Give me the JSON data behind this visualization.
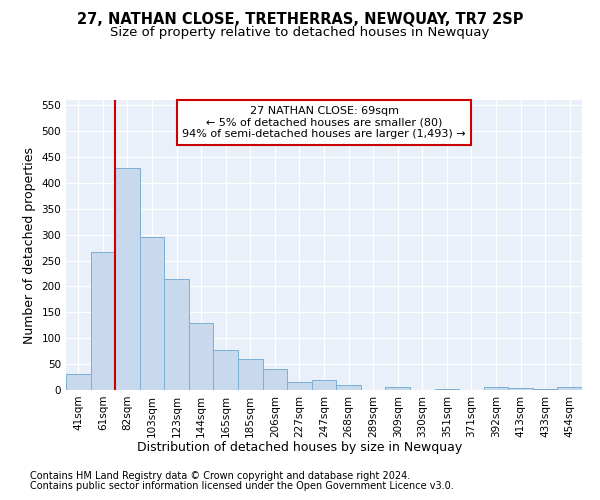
{
  "title": "27, NATHAN CLOSE, TRETHERRAS, NEWQUAY, TR7 2SP",
  "subtitle": "Size of property relative to detached houses in Newquay",
  "xlabel": "Distribution of detached houses by size in Newquay",
  "ylabel": "Number of detached properties",
  "bar_labels": [
    "41sqm",
    "61sqm",
    "82sqm",
    "103sqm",
    "123sqm",
    "144sqm",
    "165sqm",
    "185sqm",
    "206sqm",
    "227sqm",
    "247sqm",
    "268sqm",
    "289sqm",
    "309sqm",
    "330sqm",
    "351sqm",
    "371sqm",
    "392sqm",
    "413sqm",
    "433sqm",
    "454sqm"
  ],
  "bar_values": [
    30,
    267,
    428,
    295,
    215,
    130,
    78,
    60,
    40,
    15,
    20,
    10,
    0,
    5,
    0,
    2,
    0,
    5,
    3,
    2,
    5
  ],
  "bar_color": "#c8d9ee",
  "bar_edgecolor": "#7aafd4",
  "background_color": "#eaf0f9",
  "grid_color": "#d0dcea",
  "vline_x_idx": 1.5,
  "vline_color": "#cc0000",
  "annotation_text": "27 NATHAN CLOSE: 69sqm\n← 5% of detached houses are smaller (80)\n94% of semi-detached houses are larger (1,493) →",
  "annotation_box_color": "#ffffff",
  "annotation_box_edgecolor": "#cc0000",
  "ylim": [
    0,
    560
  ],
  "yticks": [
    0,
    50,
    100,
    150,
    200,
    250,
    300,
    350,
    400,
    450,
    500,
    550
  ],
  "footer_line1": "Contains HM Land Registry data © Crown copyright and database right 2024.",
  "footer_line2": "Contains public sector information licensed under the Open Government Licence v3.0.",
  "title_fontsize": 10.5,
  "subtitle_fontsize": 9.5,
  "axis_label_fontsize": 9,
  "tick_fontsize": 7.5,
  "annotation_fontsize": 8,
  "footer_fontsize": 7
}
